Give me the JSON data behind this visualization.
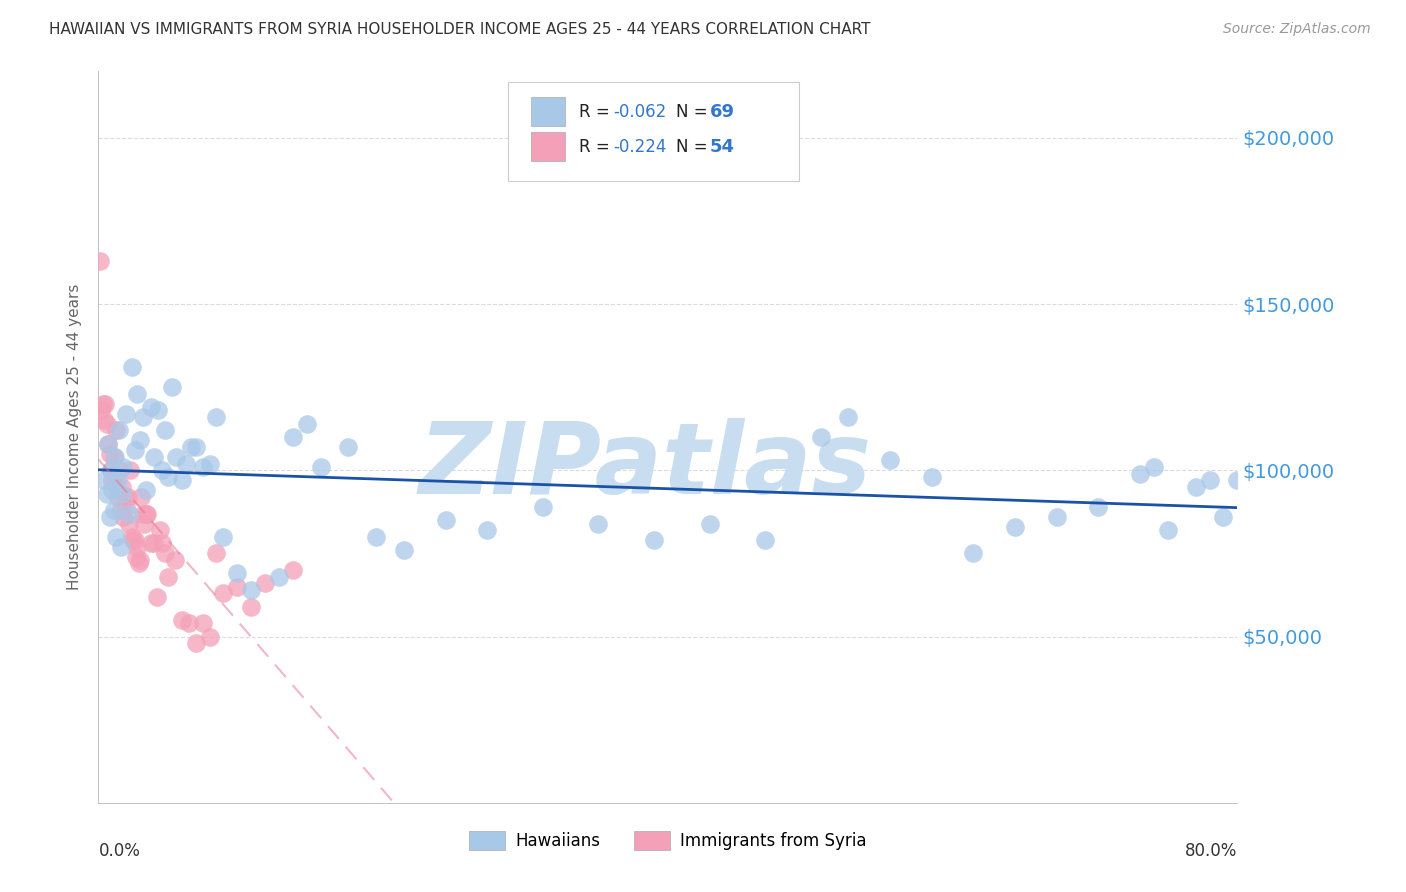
{
  "title": "HAWAIIAN VS IMMIGRANTS FROM SYRIA HOUSEHOLDER INCOME AGES 25 - 44 YEARS CORRELATION CHART",
  "source": "Source: ZipAtlas.com",
  "ylabel": "Householder Income Ages 25 - 44 years",
  "ytick_values": [
    50000,
    100000,
    150000,
    200000
  ],
  "ylim": [
    0,
    220000
  ],
  "xlim": [
    0.0,
    0.82
  ],
  "legend_blue_label": "Hawaiians",
  "legend_pink_label": "Immigrants from Syria",
  "legend_blue_R": "R = ",
  "legend_blue_R_val": "-0.062",
  "legend_blue_N": "N = ",
  "legend_blue_N_val": "69",
  "legend_pink_R": "R = ",
  "legend_pink_R_val": "-0.224",
  "legend_pink_N": "N = ",
  "legend_pink_N_val": "54",
  "blue_color": "#a8c8e8",
  "pink_color": "#f4a0b8",
  "blue_line_color": "#1a52a8",
  "pink_line_color": "#e07090",
  "grid_color": "#cccccc",
  "title_color": "#333333",
  "axis_label_color": "#666666",
  "right_tick_color": "#4499dd",
  "stat_color": "#3377cc",
  "watermark_color": "#c8ddf0",
  "blue_scatter_x": [
    0.004,
    0.006,
    0.007,
    0.008,
    0.009,
    0.01,
    0.011,
    0.012,
    0.013,
    0.014,
    0.015,
    0.016,
    0.017,
    0.018,
    0.02,
    0.022,
    0.024,
    0.026,
    0.028,
    0.03,
    0.032,
    0.034,
    0.038,
    0.04,
    0.043,
    0.046,
    0.048,
    0.05,
    0.053,
    0.056,
    0.06,
    0.063,
    0.067,
    0.07,
    0.075,
    0.08,
    0.085,
    0.09,
    0.1,
    0.11,
    0.13,
    0.14,
    0.15,
    0.16,
    0.18,
    0.2,
    0.22,
    0.25,
    0.28,
    0.32,
    0.36,
    0.4,
    0.44,
    0.48,
    0.52,
    0.54,
    0.57,
    0.6,
    0.63,
    0.66,
    0.69,
    0.72,
    0.75,
    0.76,
    0.77,
    0.79,
    0.8,
    0.81,
    0.82
  ],
  "blue_scatter_y": [
    97000,
    93000,
    108000,
    86000,
    100000,
    94000,
    88000,
    104000,
    80000,
    97000,
    112000,
    77000,
    93000,
    101000,
    117000,
    87000,
    131000,
    106000,
    123000,
    109000,
    116000,
    94000,
    119000,
    104000,
    118000,
    100000,
    112000,
    98000,
    125000,
    104000,
    97000,
    102000,
    107000,
    107000,
    101000,
    102000,
    116000,
    80000,
    69000,
    64000,
    68000,
    110000,
    114000,
    101000,
    107000,
    80000,
    76000,
    85000,
    82000,
    89000,
    84000,
    79000,
    84000,
    79000,
    110000,
    116000,
    103000,
    98000,
    75000,
    83000,
    86000,
    89000,
    99000,
    101000,
    82000,
    95000,
    97000,
    86000,
    97000
  ],
  "pink_scatter_x": [
    0.001,
    0.002,
    0.003,
    0.004,
    0.005,
    0.006,
    0.007,
    0.008,
    0.009,
    0.01,
    0.011,
    0.012,
    0.013,
    0.014,
    0.015,
    0.016,
    0.017,
    0.018,
    0.019,
    0.02,
    0.021,
    0.022,
    0.023,
    0.024,
    0.025,
    0.026,
    0.027,
    0.028,
    0.029,
    0.03,
    0.031,
    0.032,
    0.033,
    0.034,
    0.035,
    0.038,
    0.04,
    0.042,
    0.044,
    0.046,
    0.048,
    0.05,
    0.055,
    0.06,
    0.065,
    0.07,
    0.075,
    0.08,
    0.085,
    0.09,
    0.1,
    0.11,
    0.12,
    0.14
  ],
  "pink_scatter_y": [
    163000,
    118000,
    120000,
    115000,
    120000,
    114000,
    108000,
    105000,
    100000,
    97000,
    104000,
    96000,
    112000,
    92000,
    100000,
    88000,
    95000,
    86000,
    92000,
    89000,
    92000,
    84000,
    100000,
    80000,
    79000,
    79000,
    74000,
    77000,
    72000,
    73000,
    92000,
    87000,
    84000,
    87000,
    87000,
    78000,
    78000,
    62000,
    82000,
    78000,
    75000,
    68000,
    73000,
    55000,
    54000,
    48000,
    54000,
    50000,
    75000,
    63000,
    65000,
    59000,
    66000,
    70000
  ]
}
